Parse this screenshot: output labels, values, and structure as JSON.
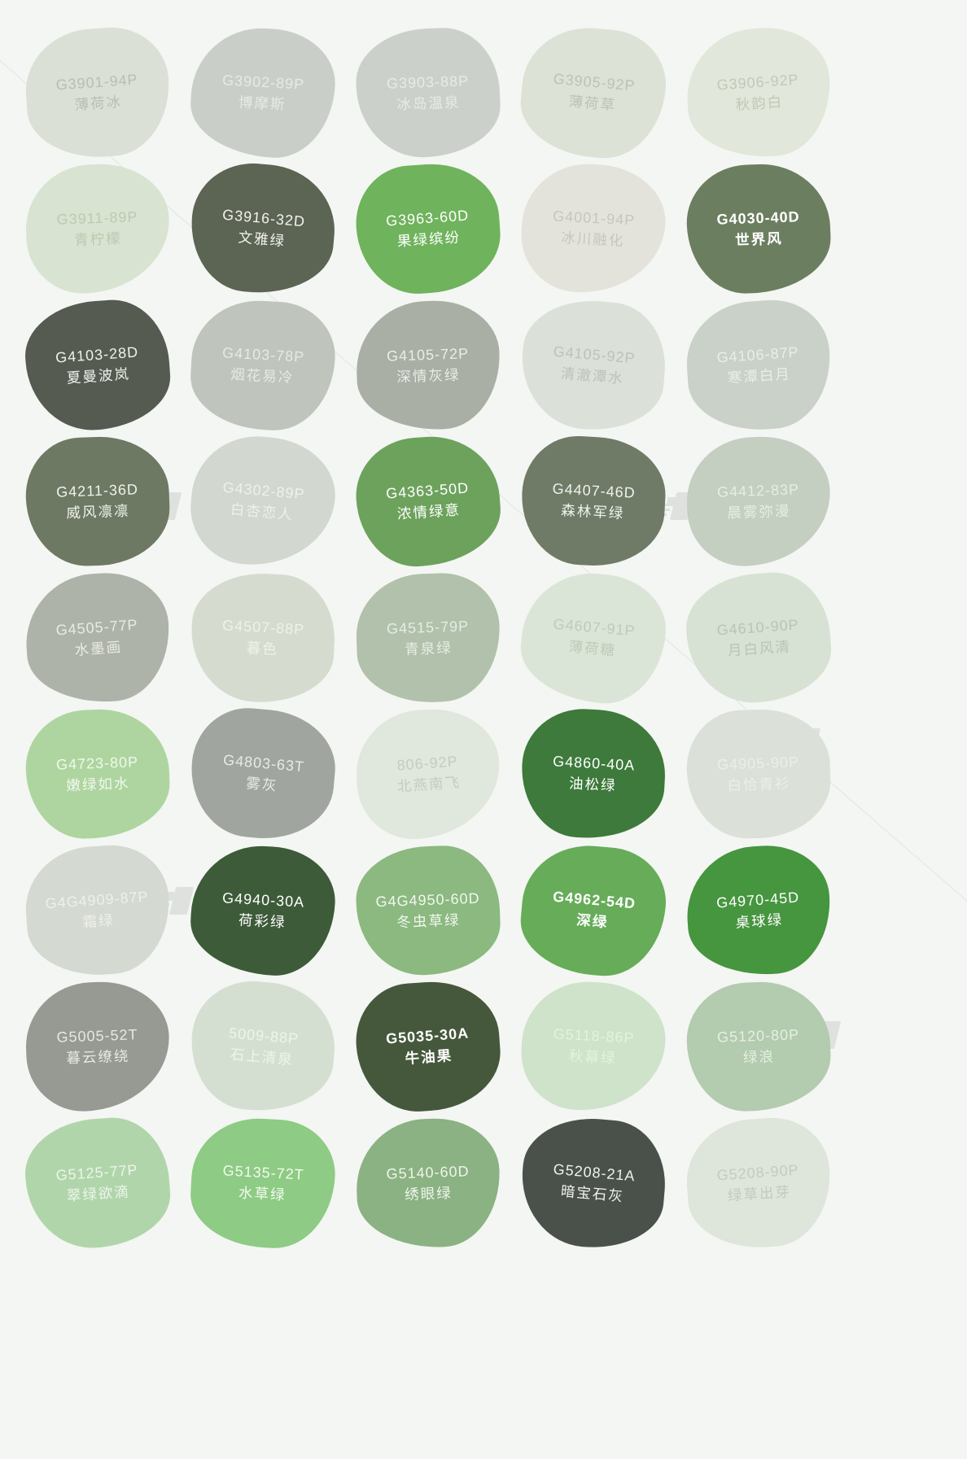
{
  "page": {
    "background_color": "#f4f6f3",
    "description_labels": {
      "code_label": "color-code",
      "name_label": "color-name"
    }
  },
  "swatches": [
    {
      "code": "G3901-94P",
      "name": "薄荷冰",
      "color": "#dbe0d7",
      "text_color": "#b7beb3",
      "bold": false
    },
    {
      "code": "G3902-89P",
      "name": "博摩斯",
      "color": "#c9cfc8",
      "text_color": "#e6eae5",
      "bold": false
    },
    {
      "code": "G3903-88P",
      "name": "冰岛温泉",
      "color": "#cbd1ca",
      "text_color": "#e7ebe6",
      "bold": false
    },
    {
      "code": "G3905-92P",
      "name": "薄荷草",
      "color": "#dce2d6",
      "text_color": "#bcc3b6",
      "bold": false
    },
    {
      "code": "G3906-92P",
      "name": "秋韵白",
      "color": "#e1e7da",
      "text_color": "#c2c9b7",
      "bold": false
    },
    {
      "code": "G3911-89P",
      "name": "青柠檬",
      "color": "#d9e3d1",
      "text_color": "#bccab1",
      "bold": false
    },
    {
      "code": "G3916-32D",
      "name": "文雅绿",
      "color": "#5c6453",
      "text_color": "#f2f3ef",
      "bold": false
    },
    {
      "code": "G3963-60D",
      "name": "果绿缤纷",
      "color": "#6fb35c",
      "text_color": "#ffffff",
      "bold": false
    },
    {
      "code": "G4001-94P",
      "name": "冰川融化",
      "color": "#e3e3dc",
      "text_color": "#c6c6bd",
      "bold": false
    },
    {
      "code": "G4030-40D",
      "name": "世界风",
      "color": "#6c7e60",
      "text_color": "#ffffff",
      "bold": true
    },
    {
      "code": "G4103-28D",
      "name": "夏曼波岚",
      "color": "#555b50",
      "text_color": "#f0f1ee",
      "bold": false
    },
    {
      "code": "G4103-78P",
      "name": "烟花易冷",
      "color": "#bfc4bc",
      "text_color": "#e7eae3",
      "bold": false
    },
    {
      "code": "G4105-72P",
      "name": "深情灰绿",
      "color": "#a9afa5",
      "text_color": "#e9ece7",
      "bold": false
    },
    {
      "code": "G4105-92P",
      "name": "清澈潭水",
      "color": "#dbe0d8",
      "text_color": "#bdc2ba",
      "bold": false
    },
    {
      "code": "G4106-87P",
      "name": "寒潭白月",
      "color": "#cad1c9",
      "text_color": "#e9eee8",
      "bold": false
    },
    {
      "code": "G4211-36D",
      "name": "威风凛凛",
      "color": "#6d7963",
      "text_color": "#f0f2ed",
      "bold": false
    },
    {
      "code": "G4302-89P",
      "name": "白杏恋人",
      "color": "#d2d7cf",
      "text_color": "#eef1ec",
      "bold": false
    },
    {
      "code": "G4363-50D",
      "name": "浓情绿意",
      "color": "#6da25d",
      "text_color": "#ffffff",
      "bold": false
    },
    {
      "code": "G4407-46D",
      "name": "森林军绿",
      "color": "#6f7b67",
      "text_color": "#f0f2ee",
      "bold": false
    },
    {
      "code": "G4412-83P",
      "name": "晨雾弥漫",
      "color": "#c4cec1",
      "text_color": "#e7ede4",
      "bold": false
    },
    {
      "code": "G4505-77P",
      "name": "水墨画",
      "color": "#aeb3a9",
      "text_color": "#e9ebe6",
      "bold": false
    },
    {
      "code": "G4507-88P",
      "name": "暮色",
      "color": "#d5dccf",
      "text_color": "#eef2ea",
      "bold": false
    },
    {
      "code": "G4515-79P",
      "name": "青泉绿",
      "color": "#b1c1ab",
      "text_color": "#e6ede3",
      "bold": false
    },
    {
      "code": "G4607-91P",
      "name": "薄荷糖",
      "color": "#dbe5d7",
      "text_color": "#bfcab9",
      "bold": false
    },
    {
      "code": "G4610-90P",
      "name": "月白风清",
      "color": "#d8e2d4",
      "text_color": "#bac3b4",
      "bold": false
    },
    {
      "code": "G4723-80P",
      "name": "嫩绿如水",
      "color": "#aed5a0",
      "text_color": "#f0f8ec",
      "bold": false
    },
    {
      "code": "G4803-63T",
      "name": "雾灰",
      "color": "#a1a59f",
      "text_color": "#e8eae7",
      "bold": false
    },
    {
      "code": "806-92P",
      "name": "北燕南飞",
      "color": "#e0e7dc",
      "text_color": "#c4cbbf",
      "bold": false
    },
    {
      "code": "G4860-40A",
      "name": "油松绿",
      "color": "#3d7a3b",
      "text_color": "#ffffff",
      "bold": false
    },
    {
      "code": "G4905-90P",
      "name": "白恰青衫",
      "color": "#dbe0d9",
      "text_color": "#ebefe9",
      "bold": false
    },
    {
      "code": "G4G4909-87P",
      "name": "霜绿",
      "color": "#d4d9d1",
      "text_color": "#eef0ec",
      "bold": false
    },
    {
      "code": "G4940-30A",
      "name": "荷彩绿",
      "color": "#3d5b39",
      "text_color": "#ffffff",
      "bold": false
    },
    {
      "code": "G4G4950-60D",
      "name": "冬虫草绿",
      "color": "#8bb980",
      "text_color": "#f2f7ef",
      "bold": false
    },
    {
      "code": "G4962-54D",
      "name": "深绿",
      "color": "#66ac59",
      "text_color": "#ffffff",
      "bold": true
    },
    {
      "code": "G4970-45D",
      "name": "桌球绿",
      "color": "#46953f",
      "text_color": "#ffffff",
      "bold": false
    },
    {
      "code": "G5005-52T",
      "name": "暮云缭绕",
      "color": "#969a93",
      "text_color": "#e6e8e4",
      "bold": false
    },
    {
      "code": "5009-88P",
      "name": "石上清泉",
      "color": "#d4dfd1",
      "text_color": "#eff4ed",
      "bold": false
    },
    {
      "code": "G5035-30A",
      "name": "牛油果",
      "color": "#45583c",
      "text_color": "#ffffff",
      "bold": true
    },
    {
      "code": "G5118-86P",
      "name": "秋幕绿",
      "color": "#cee3c9",
      "text_color": "#e4f1e0",
      "bold": false
    },
    {
      "code": "G5120-80P",
      "name": "绿浪",
      "color": "#b3cbaf",
      "text_color": "#e6efe3",
      "bold": false
    },
    {
      "code": "G5125-77P",
      "name": "翠绿欲滴",
      "color": "#b1d5aa",
      "text_color": "#edf5ea",
      "bold": false
    },
    {
      "code": "G5135-72T",
      "name": "水草绿",
      "color": "#8ecb84",
      "text_color": "#f3faf0",
      "bold": false
    },
    {
      "code": "G5140-60D",
      "name": "绣眼绿",
      "color": "#8bb282",
      "text_color": "#f0f4ed",
      "bold": false
    },
    {
      "code": "G5208-21A",
      "name": "暗宝石灰",
      "color": "#4a514a",
      "text_color": "#f0f1ef",
      "bold": false
    },
    {
      "code": "G5208-90P",
      "name": "绿草出芽",
      "color": "#dee5db",
      "text_color": "#c3cabf",
      "bold": false
    }
  ]
}
